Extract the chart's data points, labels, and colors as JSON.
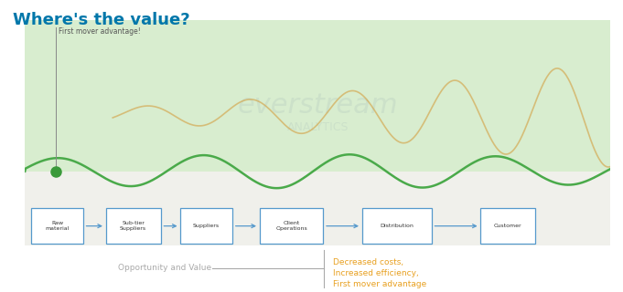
{
  "title": "Where's the value?",
  "title_color": "#0077aa",
  "title_fontsize": 13,
  "bg_color": "#ffffff",
  "panel_bg_color": "#d8edcf",
  "first_mover_label": "First mover advantage!",
  "watermark_line1": "everstream",
  "watermark_line2": "ANALYTICS",
  "green_line_color": "#4aaa4a",
  "orange_line_color": "#d4a44a",
  "dot_color": "#3a9a3a",
  "supply_chain_boxes": [
    "Raw\nmaterial",
    "Sub-tier\nSuppliers",
    "Suppliers",
    "Client\nOperations",
    "Distribution",
    "Customer"
  ],
  "box_color": "#ffffff",
  "box_border_color": "#5599cc",
  "box_text_color": "#333333",
  "arrow_color": "#5599cc",
  "opportunity_label": "Opportunity and Value",
  "opportunity_label_color": "#aaaaaa",
  "benefit_text": "Decreased costs,\nIncreased efficiency,\nFirst mover advantage",
  "benefit_color": "#e8a020"
}
